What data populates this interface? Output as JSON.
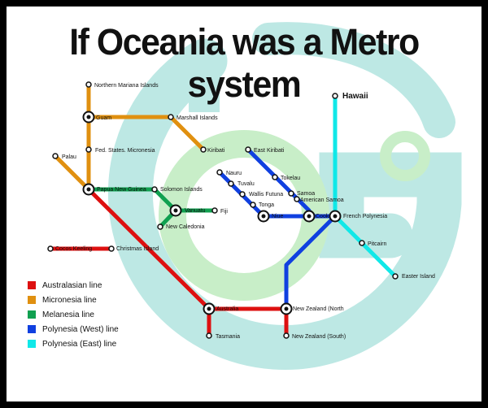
{
  "title": "If Oceania was a Metro system",
  "colors": {
    "australasian": "#dd1010",
    "micronesia": "#e09010",
    "melanesia": "#10a050",
    "polynesia_west": "#1040e0",
    "polynesia_east": "#10e8e8",
    "logo_teal": "#bde8e4",
    "logo_green": "#c8eec8"
  },
  "legend": [
    {
      "label": "Australasian line",
      "color_key": "australasian"
    },
    {
      "label": "Micronesia line",
      "color_key": "micronesia"
    },
    {
      "label": "Melanesia line",
      "color_key": "melanesia"
    },
    {
      "label": "Polynesia  (West) line",
      "color_key": "polynesia_west"
    },
    {
      "label": "Polynesia  (East) line",
      "color_key": "polynesia_east"
    }
  ],
  "stations": {
    "northern_mariana": "Northern Mariana Islands",
    "guam": "Guam",
    "marshall": "Marshall Islands",
    "palau": "Palau",
    "fsm": "Fed. States. Micronesia",
    "kiribati": "Kiribati",
    "east_kiribati": "East Kiribati",
    "png": "Papua New Guinea",
    "solomon": "Solomon Islands",
    "nauru": "Nauru",
    "tokelau": "Tokelau",
    "tuvalu": "Tuvalu",
    "wallis": "Wallis Futuna",
    "samoa": "Samoa",
    "american_samoa": "American Samoa",
    "tonga": "Tonga",
    "vanuatu": "Vanuatu",
    "fiji": "Fiji",
    "niue": "Niue",
    "cook": "Cook",
    "french_polynesia": "French Polynesia",
    "new_caledonia": "New Caledonia",
    "hawaii": "Hawaii",
    "pitcairn": "Pitcairn",
    "easter": "Easter Island",
    "cocos": "Cocos Keeling",
    "christmas": "Christmas Island",
    "australia": "Australia",
    "nz_north": "New Zealand (North",
    "tasmania": "Tasmania",
    "nz_south": "New Zealand (South)"
  }
}
